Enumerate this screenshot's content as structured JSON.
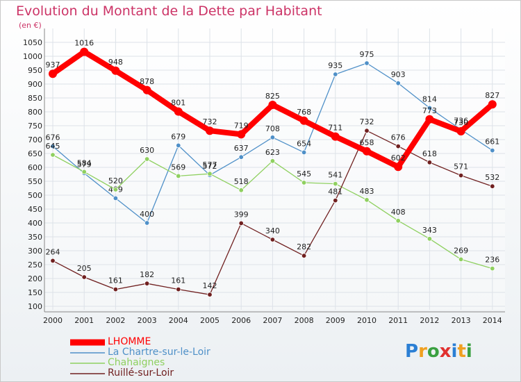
{
  "title": "Evolution du Montant de la Dette par Habitant",
  "unit": "(en €)",
  "brand": {
    "text": "Proxiti",
    "letter_colors": [
      "#2b7fd4",
      "#f0a020",
      "#3aa040",
      "#e0302f",
      "#2b7fd4",
      "#f0a020",
      "#3aa040"
    ]
  },
  "chart_data": {
    "type": "line",
    "title": "Evolution du Montant de la Dette par Habitant",
    "ylabel": "(en €)",
    "xlabel": "",
    "x": [
      "2000",
      "2001",
      "2002",
      "2003",
      "2004",
      "2005",
      "2006",
      "2007",
      "2008",
      "2009",
      "2010",
      "2011",
      "2012",
      "2013",
      "2014"
    ],
    "ylim": [
      100,
      1050
    ],
    "yticks": [
      100,
      150,
      200,
      250,
      300,
      350,
      400,
      450,
      500,
      550,
      600,
      650,
      700,
      750,
      800,
      850,
      900,
      950,
      1000,
      1050
    ],
    "grid": true,
    "legend_position": "bottom-left",
    "series": [
      {
        "name": "LHOMME",
        "color": "#ff0000",
        "emphasis": true,
        "values": [
          937,
          1016,
          948,
          878,
          801,
          732,
          719,
          825,
          768,
          711,
          658,
          602,
          773,
          730,
          827
        ]
      },
      {
        "name": "La Chartre-sur-le-Loir",
        "color": "#4f90c8",
        "values": [
          676,
          579,
          489,
          400,
          679,
          572,
          637,
          708,
          654,
          935,
          975,
          903,
          814,
          736,
          661
        ]
      },
      {
        "name": "Chahaignes",
        "color": "#8fd060",
        "values": [
          645,
          584,
          520,
          630,
          569,
          577,
          518,
          623,
          545,
          541,
          483,
          408,
          343,
          269,
          236
        ]
      },
      {
        "name": "Ruillé-sur-Loir",
        "color": "#702020",
        "values": [
          264,
          205,
          161,
          182,
          161,
          142,
          399,
          340,
          282,
          481,
          732,
          676,
          618,
          571,
          532
        ]
      }
    ]
  },
  "legend": [
    {
      "label": "LHOMME",
      "color": "#ff0000"
    },
    {
      "label": "La Chartre-sur-le-Loir",
      "color": "#4f90c8"
    },
    {
      "label": "Chahaignes",
      "color": "#8fd060"
    },
    {
      "label": "Ruillé-sur-Loir",
      "color": "#702020"
    }
  ]
}
